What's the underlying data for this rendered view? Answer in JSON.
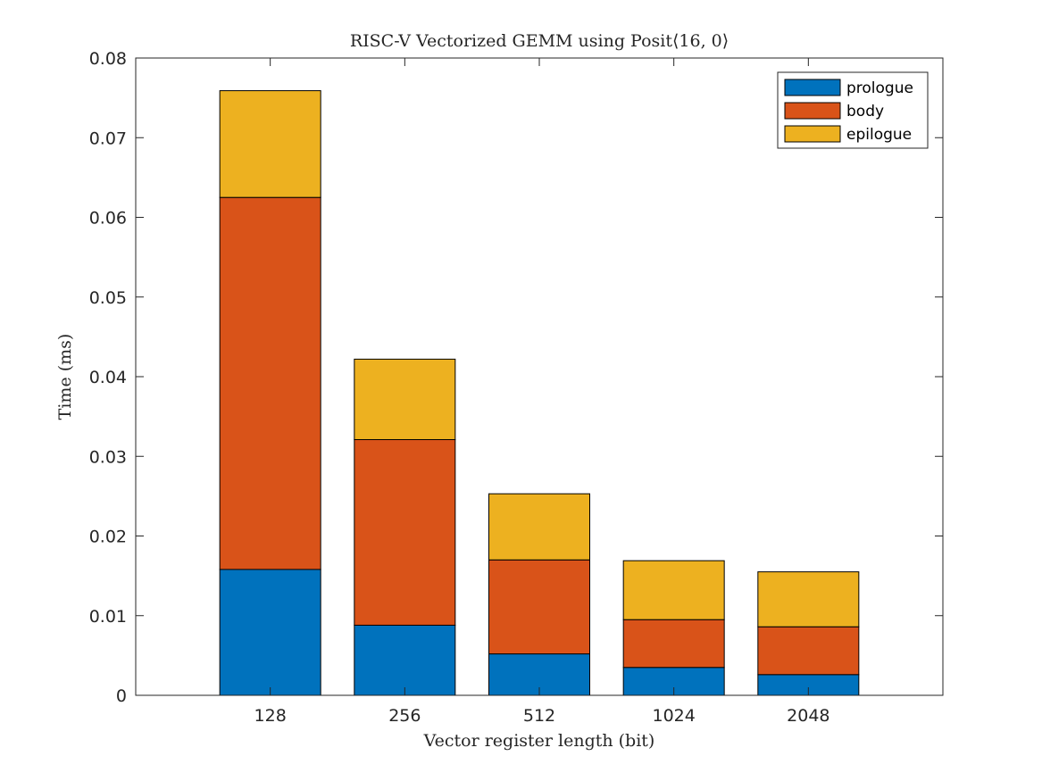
{
  "chart_data": {
    "type": "bar",
    "stacked": true,
    "title": "RISC-V Vectorized GEMM using Posit⟨16, 0⟩",
    "xlabel": "Vector register length (bit)",
    "ylabel": "Time (ms)",
    "categories": [
      "128",
      "256",
      "512",
      "1024",
      "2048"
    ],
    "ylim": [
      0,
      0.08
    ],
    "yticks": [
      0,
      0.01,
      0.02,
      0.03,
      0.04,
      0.05,
      0.06,
      0.07,
      0.08
    ],
    "ytick_labels": [
      "0",
      "0.01",
      "0.02",
      "0.03",
      "0.04",
      "0.05",
      "0.06",
      "0.07",
      "0.08"
    ],
    "grid": false,
    "legend_position": "top-right",
    "series": [
      {
        "name": "prologue",
        "color": "#0072BD",
        "values": [
          0.0158,
          0.0088,
          0.0052,
          0.0035,
          0.0026
        ]
      },
      {
        "name": "body",
        "color": "#D95319",
        "values": [
          0.0467,
          0.0233,
          0.0118,
          0.006,
          0.006
        ]
      },
      {
        "name": "epilogue",
        "color": "#EDB120",
        "values": [
          0.0134,
          0.0101,
          0.0083,
          0.0074,
          0.0069
        ]
      }
    ]
  }
}
